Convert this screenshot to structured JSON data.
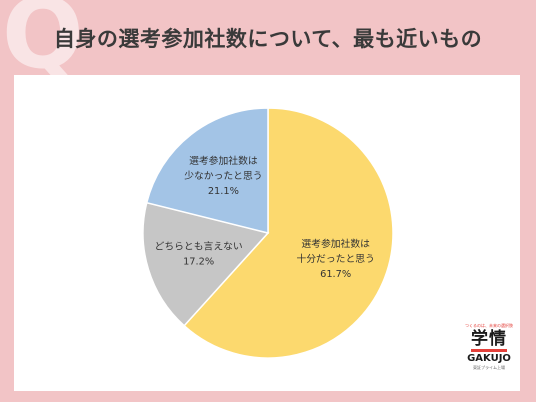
{
  "header": {
    "q_mark": "Q",
    "title": "自身の選考参加社数について、最も近いもの"
  },
  "chart_data": {
    "type": "pie",
    "title": "自身の選考参加社数について、最も近いもの",
    "slices": [
      {
        "label_lines": [
          "選考参加社数は",
          "十分だったと思う"
        ],
        "value": 61.7,
        "value_label": "61.7%",
        "color": "#fcd96e"
      },
      {
        "label_lines": [
          "どちらとも言えない"
        ],
        "value": 17.2,
        "value_label": "17.2%",
        "color": "#c6c6c6"
      },
      {
        "label_lines": [
          "選考参加社数は",
          "少なかったと思う"
        ],
        "value": 21.1,
        "value_label": "21.1%",
        "color": "#a3c4e6"
      }
    ],
    "start": "12 o'clock",
    "direction": "clockwise"
  },
  "logo": {
    "tagline": "つくるのは、未来の選択肢",
    "brand_jp": "学情",
    "brand_en": "GAKUJO",
    "sub": "東証プライム上場"
  }
}
